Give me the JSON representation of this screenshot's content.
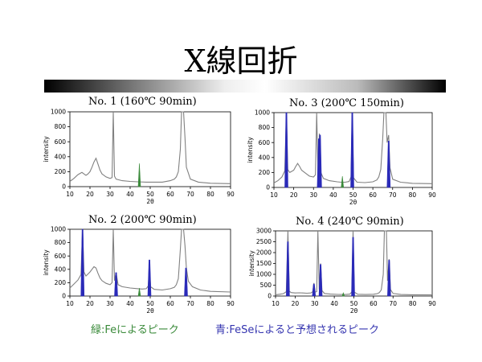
{
  "slide": {
    "title": "X線回折",
    "legend_green": "緑:Feによるピーク",
    "legend_blue": "青:FeSeによると予想されるピーク",
    "colors": {
      "green_peak": "#3a8a3a",
      "blue_peak": "#2a2ab8",
      "pattern": "#808080"
    }
  },
  "chart_data": [
    {
      "type": "line",
      "title": "No. 1 (160℃ 90min)",
      "xlabel": "2θ",
      "ylabel": "intensity",
      "xlim": [
        10,
        90
      ],
      "ylim": [
        0,
        1000
      ],
      "xticks": [
        10,
        20,
        30,
        40,
        50,
        60,
        70,
        80,
        90
      ],
      "yticks": [
        0,
        200,
        400,
        600,
        800,
        1000
      ],
      "grid": false,
      "pattern": [
        [
          10,
          70
        ],
        [
          12,
          110
        ],
        [
          14,
          160
        ],
        [
          16,
          190
        ],
        [
          17,
          170
        ],
        [
          18,
          150
        ],
        [
          19,
          170
        ],
        [
          20,
          200
        ],
        [
          21,
          260
        ],
        [
          22,
          330
        ],
        [
          23,
          380
        ],
        [
          24,
          300
        ],
        [
          25,
          220
        ],
        [
          26,
          170
        ],
        [
          28,
          130
        ],
        [
          30,
          110
        ],
        [
          31,
          120
        ],
        [
          31.6,
          1000
        ],
        [
          32.2,
          140
        ],
        [
          33,
          100
        ],
        [
          36,
          80
        ],
        [
          40,
          70
        ],
        [
          44,
          65
        ],
        [
          48,
          60
        ],
        [
          52,
          60
        ],
        [
          56,
          60
        ],
        [
          60,
          80
        ],
        [
          62,
          100
        ],
        [
          63,
          130
        ],
        [
          64,
          200
        ],
        [
          65,
          500
        ],
        [
          65.6,
          1000
        ],
        [
          66.6,
          1000
        ],
        [
          67.3,
          650
        ],
        [
          68,
          260
        ],
        [
          70,
          100
        ],
        [
          74,
          60
        ],
        [
          80,
          45
        ],
        [
          90,
          40
        ]
      ],
      "green_peaks": [
        [
          44.6,
          310
        ]
      ],
      "blue_peaks": []
    },
    {
      "type": "line",
      "title": "No. 2 (200℃ 90min)",
      "xlabel": "2θ",
      "ylabel": "intensity",
      "xlim": [
        10,
        90
      ],
      "ylim": [
        0,
        1000
      ],
      "xticks": [
        10,
        20,
        30,
        40,
        50,
        60,
        70,
        80,
        90
      ],
      "yticks": [
        0,
        200,
        400,
        600,
        800,
        1000
      ],
      "grid": false,
      "pattern": [
        [
          10,
          120
        ],
        [
          12,
          180
        ],
        [
          14,
          240
        ],
        [
          15.5,
          320
        ],
        [
          16.3,
          1000
        ],
        [
          17,
          360
        ],
        [
          18,
          300
        ],
        [
          19,
          330
        ],
        [
          20,
          360
        ],
        [
          21,
          400
        ],
        [
          22,
          440
        ],
        [
          23,
          420
        ],
        [
          24,
          340
        ],
        [
          25,
          270
        ],
        [
          26,
          230
        ],
        [
          28,
          190
        ],
        [
          30,
          170
        ],
        [
          31,
          200
        ],
        [
          31.6,
          1000
        ],
        [
          32.2,
          230
        ],
        [
          33,
          350
        ],
        [
          34,
          170
        ],
        [
          36,
          140
        ],
        [
          40,
          120
        ],
        [
          44,
          110
        ],
        [
          46,
          105
        ],
        [
          48,
          110
        ],
        [
          49,
          150
        ],
        [
          49.6,
          420
        ],
        [
          50.2,
          140
        ],
        [
          52,
          100
        ],
        [
          56,
          90
        ],
        [
          60,
          110
        ],
        [
          62,
          130
        ],
        [
          63,
          170
        ],
        [
          64,
          260
        ],
        [
          65,
          700
        ],
        [
          65.6,
          1000
        ],
        [
          66.6,
          1000
        ],
        [
          67.3,
          750
        ],
        [
          68,
          420
        ],
        [
          69,
          220
        ],
        [
          71,
          140
        ],
        [
          75,
          90
        ],
        [
          80,
          70
        ],
        [
          90,
          60
        ]
      ],
      "green_peaks": [
        [
          44.6,
          120
        ]
      ],
      "blue_peaks": [
        [
          16.3,
          1000
        ],
        [
          33.0,
          350
        ],
        [
          49.6,
          540
        ],
        [
          67.8,
          420
        ]
      ]
    },
    {
      "type": "line",
      "title": "No. 3 (200℃ 150min)",
      "xlabel": "2θ",
      "ylabel": "intensity",
      "xlim": [
        10,
        90
      ],
      "ylim": [
        0,
        1000
      ],
      "xticks": [
        10,
        20,
        30,
        40,
        50,
        60,
        70,
        80,
        90
      ],
      "yticks": [
        0,
        200,
        400,
        600,
        800,
        1000
      ],
      "grid": false,
      "pattern": [
        [
          10,
          60
        ],
        [
          12,
          90
        ],
        [
          14,
          140
        ],
        [
          15.5,
          220
        ],
        [
          16.3,
          1000
        ],
        [
          17,
          240
        ],
        [
          18,
          200
        ],
        [
          20,
          230
        ],
        [
          21,
          280
        ],
        [
          22,
          320
        ],
        [
          23,
          280
        ],
        [
          24,
          230
        ],
        [
          26,
          190
        ],
        [
          28,
          150
        ],
        [
          30,
          140
        ],
        [
          31,
          170
        ],
        [
          31.6,
          1000
        ],
        [
          32.3,
          200
        ],
        [
          33,
          720
        ],
        [
          33.7,
          200
        ],
        [
          35,
          120
        ],
        [
          38,
          90
        ],
        [
          42,
          75
        ],
        [
          44,
          70
        ],
        [
          46,
          70
        ],
        [
          48,
          80
        ],
        [
          49,
          140
        ],
        [
          49.6,
          1000
        ],
        [
          50.2,
          130
        ],
        [
          52,
          70
        ],
        [
          56,
          65
        ],
        [
          60,
          75
        ],
        [
          62,
          100
        ],
        [
          63,
          140
        ],
        [
          64,
          240
        ],
        [
          65,
          650
        ],
        [
          65.6,
          1000
        ],
        [
          66.6,
          1000
        ],
        [
          67.2,
          600
        ],
        [
          68,
          700
        ],
        [
          68.7,
          260
        ],
        [
          70,
          110
        ],
        [
          74,
          70
        ],
        [
          80,
          55
        ],
        [
          90,
          50
        ]
      ],
      "green_peaks": [
        [
          44.6,
          150
        ]
      ],
      "blue_peaks": [
        [
          16.3,
          1000
        ],
        [
          32.7,
          650
        ],
        [
          33.3,
          700
        ],
        [
          49.6,
          1000
        ],
        [
          68.0,
          620
        ]
      ]
    },
    {
      "type": "line",
      "title": "No. 4 (240℃ 90min)",
      "xlabel": "2θ",
      "ylabel": "intensity",
      "xlim": [
        10,
        90
      ],
      "ylim": [
        0,
        3000
      ],
      "xticks": [
        10,
        20,
        30,
        40,
        50,
        60,
        70,
        80,
        90
      ],
      "yticks": [
        0,
        500,
        1000,
        1500,
        2000,
        2500,
        3000
      ],
      "grid": false,
      "pattern": [
        [
          10,
          60
        ],
        [
          12,
          80
        ],
        [
          14,
          110
        ],
        [
          15.5,
          200
        ],
        [
          16.3,
          3000
        ],
        [
          17,
          220
        ],
        [
          18,
          160
        ],
        [
          20,
          140
        ],
        [
          22,
          150
        ],
        [
          24,
          140
        ],
        [
          26,
          130
        ],
        [
          28,
          140
        ],
        [
          29,
          200
        ],
        [
          29.6,
          600
        ],
        [
          30.2,
          180
        ],
        [
          31,
          200
        ],
        [
          31.6,
          3000
        ],
        [
          32.3,
          300
        ],
        [
          33,
          1500
        ],
        [
          33.7,
          250
        ],
        [
          35,
          120
        ],
        [
          38,
          90
        ],
        [
          42,
          75
        ],
        [
          44,
          70
        ],
        [
          46,
          70
        ],
        [
          48,
          90
        ],
        [
          49,
          200
        ],
        [
          49.6,
          3000
        ],
        [
          50.2,
          180
        ],
        [
          52,
          80
        ],
        [
          56,
          70
        ],
        [
          60,
          80
        ],
        [
          62,
          110
        ],
        [
          63,
          160
        ],
        [
          64,
          280
        ],
        [
          65,
          1000
        ],
        [
          65.6,
          3000
        ],
        [
          66.6,
          3000
        ],
        [
          67.2,
          700
        ],
        [
          68,
          1700
        ],
        [
          68.7,
          300
        ],
        [
          70,
          120
        ],
        [
          74,
          70
        ],
        [
          80,
          60
        ],
        [
          90,
          55
        ]
      ],
      "green_peaks": [
        [
          44.6,
          150
        ]
      ],
      "blue_peaks": [
        [
          16.3,
          2500
        ],
        [
          29.6,
          550
        ],
        [
          33.0,
          1450
        ],
        [
          49.6,
          2700
        ],
        [
          68.0,
          1650
        ]
      ]
    }
  ]
}
